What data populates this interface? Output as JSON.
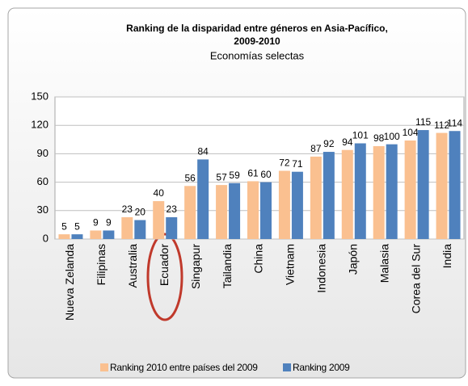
{
  "chart_data": {
    "type": "bar",
    "title": [
      "Ranking de la disparidad entre géneros en Asia-Pacífico,",
      "2009-2010"
    ],
    "subtitle": "Economías selectas",
    "categories": [
      "Nueva Zelanda",
      "Filipinas",
      "Australia",
      "Ecuador",
      "Singapur",
      "Tailandia",
      "China",
      "Vietnam",
      "Indonesia",
      "Japón",
      "Malasia",
      "Corea del Sur",
      "India"
    ],
    "series": [
      {
        "name": "Ranking 2010 entre países del 2009",
        "color": "#fac090",
        "values": [
          5,
          9,
          23,
          40,
          56,
          57,
          61,
          72,
          87,
          94,
          98,
          104,
          112
        ]
      },
      {
        "name": "Ranking 2009",
        "color": "#4f81bd",
        "values": [
          5,
          9,
          20,
          23,
          84,
          59,
          60,
          71,
          92,
          101,
          100,
          115,
          114
        ]
      }
    ],
    "ylim": [
      0,
      150
    ],
    "yticks": [
      0,
      30,
      60,
      90,
      120,
      150
    ],
    "grid": true,
    "legend": "bottom"
  }
}
